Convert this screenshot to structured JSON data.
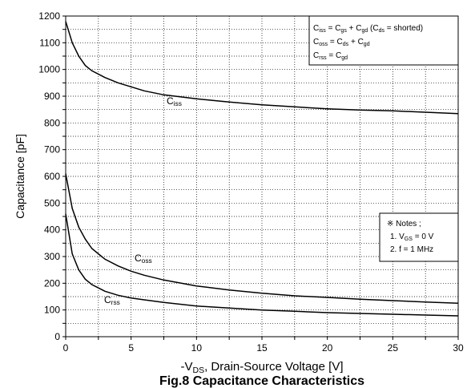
{
  "chart_data": {
    "type": "line",
    "title": "Fig.8 Capacitance Characteristics",
    "y_label": "Capacitance [pF]",
    "x_label": [
      "-V",
      {
        "sub": "DS"
      },
      ", Drain-Source Voltage [V]"
    ],
    "x": [
      0,
      0.5,
      1,
      1.5,
      2,
      3,
      4,
      5,
      6,
      7.5,
      10,
      12.5,
      15,
      17.5,
      20,
      22.5,
      25,
      27.5,
      30
    ],
    "series": [
      {
        "label": [
          "C",
          {
            "sub": "iss"
          }
        ],
        "color": "#000000",
        "values": [
          1180,
          1100,
          1050,
          1015,
          995,
          970,
          950,
          935,
          920,
          905,
          890,
          878,
          868,
          860,
          853,
          848,
          845,
          840,
          835
        ]
      },
      {
        "label": [
          "C",
          {
            "sub": "oss"
          }
        ],
        "color": "#000000",
        "values": [
          610,
          480,
          410,
          365,
          330,
          290,
          265,
          245,
          230,
          212,
          190,
          175,
          163,
          153,
          147,
          140,
          135,
          130,
          125
        ]
      },
      {
        "label": [
          "C",
          {
            "sub": "rss"
          }
        ],
        "color": "#000000",
        "values": [
          460,
          310,
          250,
          215,
          195,
          170,
          155,
          145,
          138,
          128,
          115,
          107,
          100,
          95,
          90,
          87,
          84,
          81,
          78
        ]
      }
    ],
    "xlim": [
      0,
      30
    ],
    "ylim": [
      0,
      1200
    ],
    "xticks": [
      0,
      5,
      10,
      15,
      20,
      25,
      30
    ],
    "yticks": [
      0,
      100,
      200,
      300,
      400,
      500,
      600,
      700,
      800,
      900,
      1000,
      1100,
      1200
    ],
    "x_minor_ticks": [
      2.5,
      7.5,
      12.5,
      17.5,
      22.5,
      27.5
    ],
    "y_minor_ticks": [
      50,
      150,
      250,
      350,
      450,
      550,
      650,
      750,
      850,
      950,
      1050,
      1150
    ],
    "grid": true,
    "definitions": [
      [
        "C",
        {
          "sub": "iss"
        },
        " = C",
        {
          "sub": "gs"
        },
        " + C",
        {
          "sub": "gd"
        },
        " (C",
        {
          "sub": "ds"
        },
        " = shorted)"
      ],
      [
        "C",
        {
          "sub": "oss"
        },
        " = C",
        {
          "sub": "ds"
        },
        " + C",
        {
          "sub": "gd"
        }
      ],
      [
        "C",
        {
          "sub": "rss"
        },
        " = C",
        {
          "sub": "gd"
        }
      ]
    ],
    "notes": [
      [
        "※ Notes ;"
      ],
      [
        "1. V",
        {
          "sub": "GS"
        },
        " = 0 V"
      ],
      [
        "2. f = 1 MHz"
      ]
    ]
  }
}
